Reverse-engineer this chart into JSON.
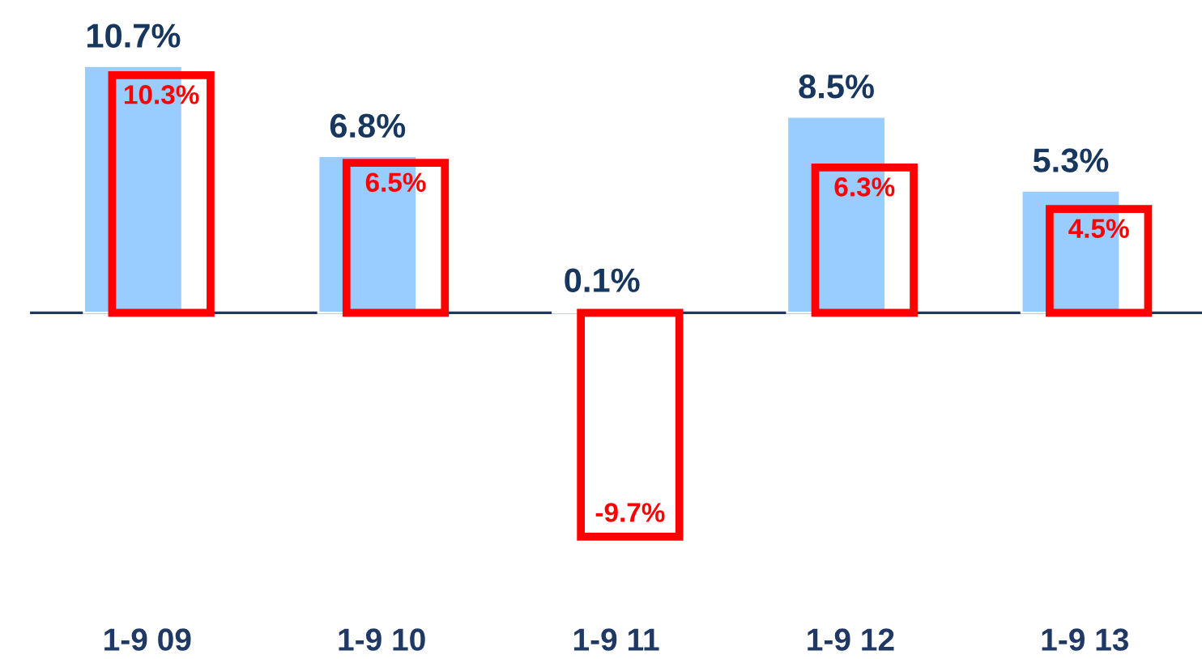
{
  "chart_data": {
    "type": "bar",
    "categories": [
      "1-9 09",
      "1-9 10",
      "1-9 11",
      "1-9 12",
      "1-9 13"
    ],
    "data_labels": true,
    "grid": false,
    "legend": false,
    "tick_labels": "x",
    "ref_lines": [
      {
        "axis": "y",
        "value": 0,
        "color": "#1f3864"
      }
    ],
    "series": [
      {
        "color": "#99ccff",
        "values": [
          10.7,
          6.8,
          0.1,
          8.5,
          5.3
        ],
        "value_labels": [
          "10.7%",
          "6.8%",
          "0.1%",
          "8.5%",
          "5.3%"
        ]
      },
      {
        "color": "#ff0000",
        "values": [
          10.3,
          6.5,
          -9.7,
          6.3,
          4.5
        ],
        "value_labels": [
          "10.3%",
          "6.5%",
          "-9.7%",
          "6.3%",
          "4.5%"
        ]
      }
    ]
  }
}
